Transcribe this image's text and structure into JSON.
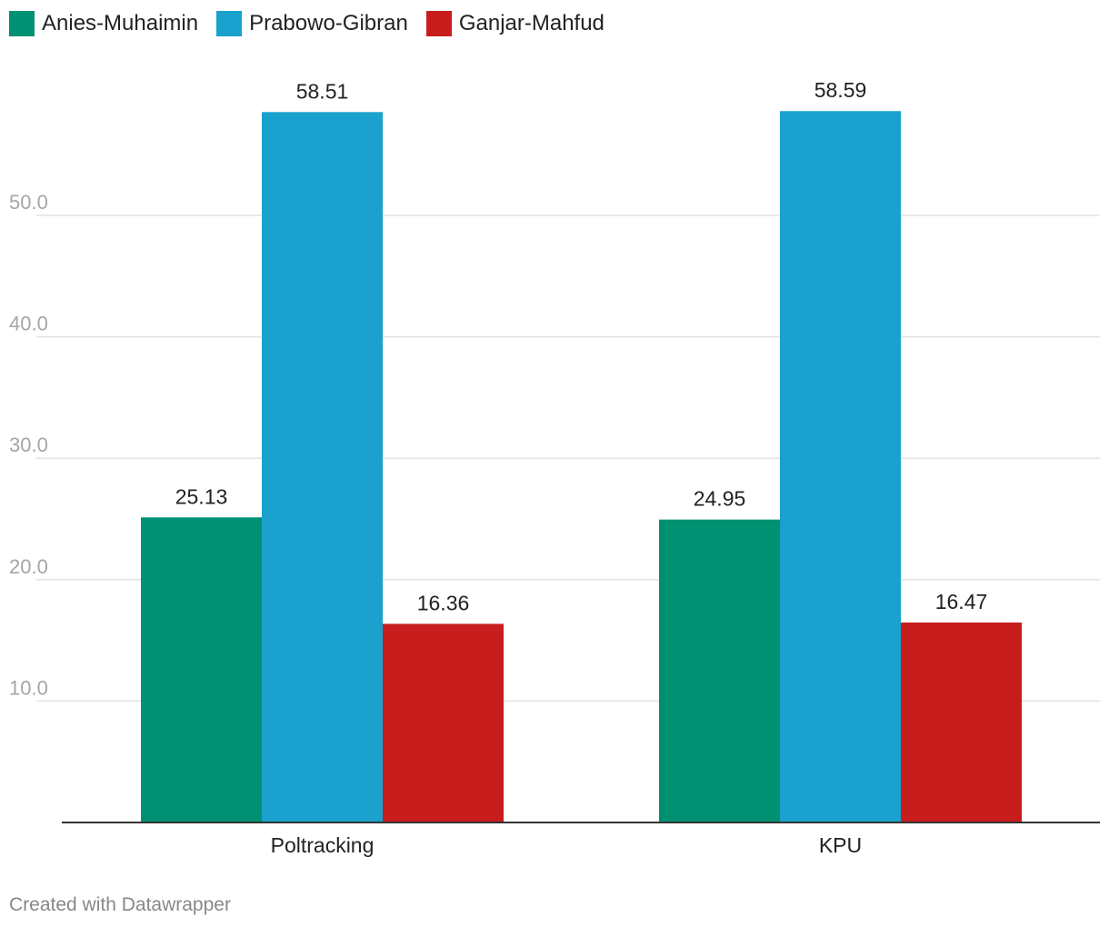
{
  "chart_data": {
    "type": "bar",
    "categories": [
      "Poltracking",
      "KPU"
    ],
    "series": [
      {
        "name": "Anies-Muhaimin",
        "values": [
          25.13,
          24.95
        ],
        "color": "#009172"
      },
      {
        "name": "Prabowo-Gibran",
        "values": [
          58.51,
          58.59
        ],
        "color": "#1aa1cd"
      },
      {
        "name": "Ganjar-Mahfud",
        "values": [
          16.36,
          16.47
        ],
        "color": "#c71e1d"
      }
    ],
    "yticks": [
      "10.0",
      "20.0",
      "30.0",
      "40.0",
      "50.0"
    ],
    "ylim": [
      0,
      60
    ],
    "grid": true,
    "legend": "top-left"
  },
  "footer": {
    "credit": "Created with Datawrapper"
  }
}
